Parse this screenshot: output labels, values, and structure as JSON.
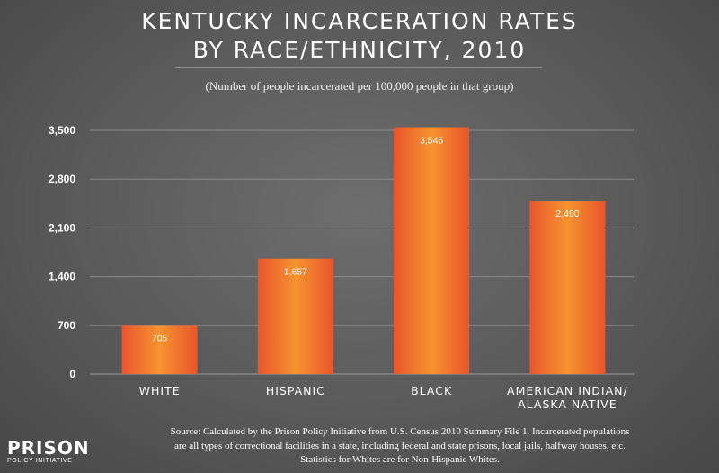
{
  "chart_data": {
    "type": "bar",
    "title": "KENTUCKY INCARCERATION RATES BY RACE/ETHNICITY, 2010",
    "title_lines": [
      "KENTUCKY INCARCERATION RATES",
      "BY RACE/ETHNICITY, 2010"
    ],
    "subtitle": "(Number of people incarcerated per 100,000 people in that group)",
    "categories": [
      [
        "WHITE"
      ],
      [
        "HISPANIC"
      ],
      [
        "BLACK"
      ],
      [
        "AMERICAN INDIAN/",
        "ALASKA NATIVE"
      ]
    ],
    "values": [
      705,
      1657,
      3545,
      2490
    ],
    "value_labels": [
      "705",
      "1,657",
      "3,545",
      "2,490"
    ],
    "yticks": [
      0,
      700,
      1400,
      2100,
      2800,
      3500
    ],
    "ytick_labels": [
      "0",
      "700",
      "1,400",
      "2,100",
      "2,800",
      "3,500"
    ],
    "ylim": [
      0,
      3500
    ],
    "xlabel": "",
    "ylabel": "",
    "grid": true,
    "colors": {
      "bar_center": "#f7932e",
      "bar_edge": "#e8552d",
      "background": "#5c5c5c"
    }
  },
  "footer": {
    "source_lines": [
      "Source: Calculated by the Prison Policy Initiative from U.S. Census 2010 Summary File 1. Incarcerated populations",
      "are all types of correctional facilities in a state, including federal and state prisons, local jails, halfway houses, etc.",
      "Statistics for Whites are for Non-Hispanic Whites."
    ]
  },
  "logo": {
    "line1": "PRISON",
    "line2": "POLICY INITIATIVE"
  }
}
